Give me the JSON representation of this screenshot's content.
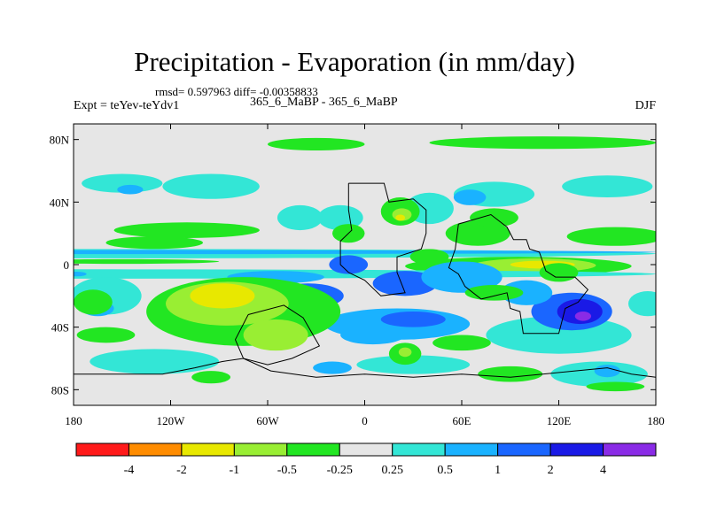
{
  "chart_data": {
    "type": "heatmap",
    "title": "Precipitation - Evaporation (in mm/day)",
    "stats_text": "rmsd= 0.597963 diff= -0.00358833",
    "left_label": "Expt = teYev-teYdv1",
    "center_label": "365_6_MaBP - 365_6_MaBP",
    "right_label": "DJF",
    "xlim": [
      -180,
      180
    ],
    "ylim": [
      -90,
      90
    ],
    "x_ticks": [
      {
        "value": -180,
        "label": "180"
      },
      {
        "value": -120,
        "label": "120W"
      },
      {
        "value": -60,
        "label": "60W"
      },
      {
        "value": 0,
        "label": "0"
      },
      {
        "value": 60,
        "label": "60E"
      },
      {
        "value": 120,
        "label": "120E"
      },
      {
        "value": 180,
        "label": "180"
      }
    ],
    "y_ticks": [
      {
        "value": 80,
        "label": "80N"
      },
      {
        "value": 40,
        "label": "40N"
      },
      {
        "value": 0,
        "label": "0"
      },
      {
        "value": -40,
        "label": "40S"
      },
      {
        "value": -80,
        "label": "80S"
      }
    ],
    "colorbar": {
      "levels": [
        "-4",
        "-2",
        "-1",
        "-0.5",
        "-0.25",
        "0.25",
        "0.5",
        "1",
        "2",
        "4"
      ],
      "colors": [
        "#ff1a1a",
        "#ff8c00",
        "#e8e800",
        "#99ee33",
        "#22e622",
        "#e6e6e6",
        "#33e6d6",
        "#1ab2ff",
        "#1a66ff",
        "#1a1ae6",
        "#8a2be6"
      ]
    },
    "background_color": "#e6e6e6",
    "regions": [
      {
        "level": -0.5,
        "lon": -30,
        "lat": 77,
        "rlon": 30,
        "rlat": 4
      },
      {
        "level": -0.5,
        "lon": 110,
        "lat": 78,
        "rlon": 70,
        "rlat": 4
      },
      {
        "level": 0.25,
        "lon": -150,
        "lat": 52,
        "rlon": 25,
        "rlat": 6
      },
      {
        "level": 0.25,
        "lon": -95,
        "lat": 50,
        "rlon": 30,
        "rlat": 8
      },
      {
        "level": 0.25,
        "lon": 150,
        "lat": 50,
        "rlon": 28,
        "rlat": 7
      },
      {
        "level": 0.5,
        "lon": -145,
        "lat": 48,
        "rlon": 8,
        "rlat": 3
      },
      {
        "level": 0.25,
        "lon": 80,
        "lat": 45,
        "rlon": 25,
        "rlat": 8
      },
      {
        "level": 0.5,
        "lon": 65,
        "lat": 43,
        "rlon": 10,
        "rlat": 5
      },
      {
        "level": 0.25,
        "lon": 40,
        "lat": 36,
        "rlon": 15,
        "rlat": 10
      },
      {
        "level": -0.5,
        "lon": -110,
        "lat": 22,
        "rlon": 45,
        "rlat": 5
      },
      {
        "level": -0.5,
        "lon": -130,
        "lat": 14,
        "rlon": 30,
        "rlat": 4
      },
      {
        "level": -0.5,
        "lon": 155,
        "lat": 18,
        "rlon": 30,
        "rlat": 6
      },
      {
        "level": -0.5,
        "lon": 70,
        "lat": 20,
        "rlon": 20,
        "rlat": 8
      },
      {
        "level": -0.5,
        "lon": 22,
        "lat": 34,
        "rlon": 12,
        "rlat": 9
      },
      {
        "level": -1,
        "lon": 23,
        "lat": 32,
        "rlon": 6,
        "rlat": 4
      },
      {
        "level": -2,
        "lon": 22,
        "lat": 30,
        "rlon": 3,
        "rlat": 2
      },
      {
        "level": 0.25,
        "lon": -15,
        "lat": 30,
        "rlon": 14,
        "rlat": 8
      },
      {
        "level": 0.25,
        "lon": -40,
        "lat": 30,
        "rlon": 14,
        "rlat": 8
      },
      {
        "level": 0.25,
        "lon": -180,
        "lat": 7,
        "rlon": 360,
        "rlat": 3
      },
      {
        "level": 0.5,
        "lon": -180,
        "lat": 8,
        "rlon": 360,
        "rlat": 1.3
      },
      {
        "level": -0.5,
        "lon": -150,
        "lat": 2,
        "rlon": 60,
        "rlat": 1.5
      },
      {
        "level": -0.5,
        "lon": 95,
        "lat": -1,
        "rlon": 70,
        "rlat": 6
      },
      {
        "level": -1,
        "lon": 105,
        "lat": -0.5,
        "rlon": 38,
        "rlat": 4.5
      },
      {
        "level": -2,
        "lon": 110,
        "lat": 0,
        "rlon": 20,
        "rlat": 2.5
      },
      {
        "level": 0.25,
        "lon": -180,
        "lat": -6,
        "rlon": 360,
        "rlat": 3
      },
      {
        "level": 0.5,
        "lon": -178,
        "lat": -6,
        "rlon": 6,
        "rlat": 1.5
      },
      {
        "level": 0.5,
        "lon": -55,
        "lat": -8,
        "rlon": 30,
        "rlat": 4
      },
      {
        "level": 1,
        "lon": -35,
        "lat": -20,
        "rlon": 22,
        "rlat": 8
      },
      {
        "level": 2,
        "lon": -25,
        "lat": -26,
        "rlon": 8,
        "rlat": 4
      },
      {
        "level": 1,
        "lon": -10,
        "lat": 0,
        "rlon": 12,
        "rlat": 6
      },
      {
        "level": 1,
        "lon": 25,
        "lat": -12,
        "rlon": 20,
        "rlat": 8
      },
      {
        "level": 0.5,
        "lon": 60,
        "lat": -8,
        "rlon": 25,
        "rlat": 10
      },
      {
        "level": 0.5,
        "lon": 20,
        "lat": -38,
        "rlon": 45,
        "rlat": 10
      },
      {
        "level": 1,
        "lon": 30,
        "lat": -35,
        "rlon": 20,
        "rlat": 5
      },
      {
        "level": 0.5,
        "lon": 5,
        "lat": -45,
        "rlon": 20,
        "rlat": 6
      },
      {
        "level": 0.25,
        "lon": 120,
        "lat": -45,
        "rlon": 45,
        "rlat": 12
      },
      {
        "level": 1,
        "lon": 128,
        "lat": -30,
        "rlon": 25,
        "rlat": 12
      },
      {
        "level": 2,
        "lon": 133,
        "lat": -30,
        "rlon": 14,
        "rlat": 8
      },
      {
        "level": 4,
        "lon": 135,
        "lat": -33,
        "rlon": 5,
        "rlat": 3
      },
      {
        "level": 0.5,
        "lon": 100,
        "lat": -18,
        "rlon": 16,
        "rlat": 8
      },
      {
        "level": 0.25,
        "lon": -160,
        "lat": -20,
        "rlon": 22,
        "rlat": 12
      },
      {
        "level": 0.5,
        "lon": -165,
        "lat": -28,
        "rlon": 10,
        "rlat": 5
      },
      {
        "level": 0.25,
        "lon": 175,
        "lat": -25,
        "rlon": 12,
        "rlat": 8
      },
      {
        "level": 0.25,
        "lon": -130,
        "lat": -62,
        "rlon": 40,
        "rlat": 8
      },
      {
        "level": 0.25,
        "lon": 30,
        "lat": -64,
        "rlon": 35,
        "rlat": 6
      },
      {
        "level": 0.5,
        "lon": -20,
        "lat": -66,
        "rlon": 12,
        "rlat": 4
      },
      {
        "level": 0.25,
        "lon": 145,
        "lat": -70,
        "rlon": 30,
        "rlat": 8
      },
      {
        "level": 0.5,
        "lon": 150,
        "lat": -68,
        "rlon": 8,
        "rlat": 4
      },
      {
        "level": -0.5,
        "lon": -75,
        "lat": -30,
        "rlon": 60,
        "rlat": 22
      },
      {
        "level": -1,
        "lon": -85,
        "lat": -25,
        "rlon": 38,
        "rlat": 14
      },
      {
        "level": -2,
        "lon": -88,
        "lat": -20,
        "rlon": 20,
        "rlat": 8
      },
      {
        "level": -0.5,
        "lon": -168,
        "lat": -24,
        "rlon": 12,
        "rlat": 8
      },
      {
        "level": -1,
        "lon": -55,
        "lat": -45,
        "rlon": 20,
        "rlat": 10
      },
      {
        "level": -0.5,
        "lon": 25,
        "lat": -57,
        "rlon": 10,
        "rlat": 7
      },
      {
        "level": -1,
        "lon": 25,
        "lat": -56,
        "rlon": 4,
        "rlat": 3
      },
      {
        "level": -0.5,
        "lon": 60,
        "lat": -50,
        "rlon": 18,
        "rlat": 5
      },
      {
        "level": -0.5,
        "lon": 80,
        "lat": -18,
        "rlon": 18,
        "rlat": 5
      },
      {
        "level": -0.5,
        "lon": 120,
        "lat": -5,
        "rlon": 12,
        "rlat": 6
      },
      {
        "level": -0.5,
        "lon": 80,
        "lat": 30,
        "rlon": 15,
        "rlat": 6
      },
      {
        "level": -0.5,
        "lon": -160,
        "lat": -45,
        "rlon": 18,
        "rlat": 5
      },
      {
        "level": -0.5,
        "lon": 90,
        "lat": -70,
        "rlon": 20,
        "rlat": 5
      },
      {
        "level": -0.5,
        "lon": -95,
        "lat": -72,
        "rlon": 12,
        "rlat": 4
      },
      {
        "level": -0.5,
        "lon": 155,
        "lat": -78,
        "rlon": 18,
        "rlat": 3
      },
      {
        "level": -0.5,
        "lon": -10,
        "lat": 20,
        "rlon": 10,
        "rlat": 6
      },
      {
        "level": -0.5,
        "lon": 40,
        "lat": 5,
        "rlon": 12,
        "rlat": 5
      }
    ],
    "continents": [
      [
        [
          -10,
          52
        ],
        [
          12,
          52
        ],
        [
          15,
          40
        ],
        [
          30,
          42
        ],
        [
          38,
          35
        ],
        [
          38,
          20
        ],
        [
          35,
          10
        ],
        [
          20,
          5
        ],
        [
          20,
          -5
        ],
        [
          25,
          -18
        ],
        [
          10,
          -20
        ],
        [
          0,
          -10
        ],
        [
          -10,
          -5
        ],
        [
          -15,
          0
        ],
        [
          -15,
          15
        ],
        [
          -8,
          22
        ],
        [
          -10,
          35
        ],
        [
          -10,
          52
        ]
      ],
      [
        [
          58,
          26
        ],
        [
          78,
          32
        ],
        [
          88,
          24
        ],
        [
          92,
          16
        ],
        [
          100,
          16
        ],
        [
          102,
          10
        ],
        [
          108,
          8
        ],
        [
          112,
          -4
        ],
        [
          118,
          -8
        ],
        [
          130,
          -8
        ],
        [
          138,
          -16
        ],
        [
          132,
          -24
        ],
        [
          124,
          -28
        ],
        [
          120,
          -44
        ],
        [
          98,
          -44
        ],
        [
          96,
          -30
        ],
        [
          90,
          -28
        ],
        [
          88,
          -18
        ],
        [
          72,
          -22
        ],
        [
          62,
          -14
        ],
        [
          58,
          -6
        ],
        [
          52,
          -2
        ],
        [
          56,
          10
        ],
        [
          58,
          26
        ]
      ],
      [
        [
          -72,
          -32
        ],
        [
          -50,
          -26
        ],
        [
          -38,
          -34
        ],
        [
          -28,
          -52
        ],
        [
          -45,
          -60
        ],
        [
          -60,
          -64
        ],
        [
          -75,
          -60
        ],
        [
          -80,
          -48
        ],
        [
          -72,
          -32
        ]
      ],
      [
        [
          -180,
          -70
        ],
        [
          -125,
          -70
        ],
        [
          -105,
          -66
        ],
        [
          -88,
          -62
        ],
        [
          -75,
          -60
        ],
        [
          -58,
          -68
        ],
        [
          -30,
          -72
        ],
        [
          0,
          -70
        ],
        [
          30,
          -72
        ],
        [
          60,
          -70
        ],
        [
          90,
          -72
        ],
        [
          110,
          -70
        ],
        [
          130,
          -68
        ],
        [
          150,
          -66
        ],
        [
          165,
          -70
        ],
        [
          180,
          -72
        ]
      ]
    ]
  }
}
